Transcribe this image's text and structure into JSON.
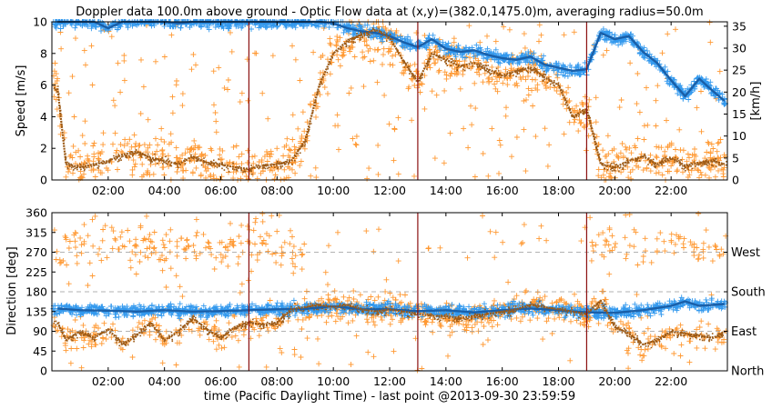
{
  "chart_data": [
    {
      "type": "scatter",
      "title": "Doppler data 100.0m above ground - Optic Flow data at (x,y)=(382.0,1475.0)m, averaging radius=50.0m",
      "xlabel": "",
      "ylabel": "Speed [m/s]",
      "ylabel_right": "[km/h]",
      "xlim": [
        0,
        24
      ],
      "ylim": [
        0,
        10
      ],
      "x_ticks": [
        2,
        4,
        6,
        8,
        10,
        12,
        14,
        16,
        18,
        20,
        22
      ],
      "x_tick_labels": [
        "02:00",
        "04:00",
        "06:00",
        "08:00",
        "10:00",
        "12:00",
        "14:00",
        "16:00",
        "18:00",
        "20:00",
        "22:00"
      ],
      "y_ticks": [
        0,
        2,
        4,
        6,
        8,
        10
      ],
      "y_tick_labels": [
        "0",
        "2",
        "4",
        "6",
        "8",
        "10"
      ],
      "y_right_ticks": [
        0,
        5,
        10,
        15,
        20,
        25,
        30,
        35
      ],
      "y_right_tick_labels": [
        "0",
        "5",
        "10",
        "15",
        "20",
        "25",
        "30",
        "35"
      ],
      "vertical_lines_x": [
        7.0,
        13.0,
        19.0
      ],
      "colors": {
        "blue_dark": "#1a5fa8",
        "blue_light": "#3399ee",
        "orange_dark": "#9c5a16",
        "orange_light": "#ff9933",
        "vline": "#8b1010"
      },
      "series": [
        {
          "style": "blue-line",
          "x": [
            0.2,
            0.5,
            1,
            1.5,
            2,
            2.5,
            3,
            3.5,
            4,
            4.5,
            5,
            5.5,
            6,
            6.5,
            7,
            7.5,
            8,
            8.5,
            9,
            9.5,
            10,
            10.5,
            11,
            11.5,
            12,
            12.5,
            13,
            13.5,
            14,
            14.5,
            15,
            15.5,
            16,
            16.5,
            17,
            17.5,
            18,
            18.5,
            19,
            19.5,
            20,
            20.5,
            21,
            21.5,
            22,
            22.5,
            23,
            23.5,
            23.9
          ],
          "y": [
            10,
            10,
            10,
            10,
            9.6,
            10,
            10,
            10,
            10,
            9.9,
            10,
            10,
            10,
            10,
            10,
            10,
            10,
            10,
            10,
            10,
            9.9,
            9.6,
            9.4,
            9.3,
            9.1,
            8.7,
            8.4,
            8.9,
            8.3,
            8.1,
            8.2,
            7.9,
            7.7,
            7.6,
            7.8,
            7.3,
            7.1,
            6.9,
            7.0,
            9.3,
            8.9,
            9.1,
            8.1,
            7.4,
            6.3,
            5.3,
            6.4,
            5.6,
            5.0
          ]
        },
        {
          "style": "orange-line",
          "x": [
            0.2,
            0.5,
            1,
            1.5,
            2,
            2.5,
            3,
            3.5,
            4,
            4.5,
            5,
            5.5,
            6,
            6.5,
            7,
            7.5,
            8,
            8.5,
            9,
            9.5,
            10,
            10.5,
            11,
            11.5,
            12,
            12.5,
            13,
            13.5,
            14,
            14.5,
            15,
            15.5,
            16,
            16.5,
            17,
            17.5,
            18,
            18.5,
            19,
            19.5,
            20,
            20.5,
            21,
            21.5,
            22,
            22.5,
            23,
            23.5,
            23.9
          ],
          "y": [
            5.8,
            1.0,
            0.8,
            1.0,
            1.2,
            1.6,
            1.8,
            1.4,
            1.2,
            1.0,
            1.5,
            1.1,
            1.0,
            0.8,
            0.7,
            0.9,
            1.0,
            1.2,
            2.5,
            6.0,
            8.0,
            8.8,
            9.2,
            9.5,
            9.0,
            7.5,
            6.2,
            8.0,
            7.6,
            7.2,
            7.4,
            7.0,
            6.6,
            6.9,
            7.1,
            6.5,
            6.0,
            4.0,
            4.5,
            1.0,
            0.8,
            1.2,
            1.5,
            1.0,
            1.4,
            0.9,
            1.1,
            1.2,
            1.0
          ]
        }
      ]
    },
    {
      "type": "scatter",
      "xlabel": "time (Pacific Daylight Time) - last point @2013-09-30 23:59:59",
      "ylabel": "Direction [deg]",
      "xlim": [
        0,
        24
      ],
      "ylim": [
        0,
        360
      ],
      "x_ticks": [
        2,
        4,
        6,
        8,
        10,
        12,
        14,
        16,
        18,
        20,
        22
      ],
      "x_tick_labels": [
        "02:00",
        "04:00",
        "06:00",
        "08:00",
        "10:00",
        "12:00",
        "14:00",
        "16:00",
        "18:00",
        "20:00",
        "22:00"
      ],
      "y_ticks": [
        0,
        45,
        90,
        135,
        180,
        225,
        270,
        315,
        360
      ],
      "y_tick_labels": [
        "0",
        "45",
        "90",
        "135",
        "180",
        "225",
        "270",
        "315",
        "360"
      ],
      "y_right_ticks": [
        0,
        90,
        180,
        270
      ],
      "y_right_tick_labels": [
        "North",
        "East",
        "South",
        "West"
      ],
      "reference_lines_y": [
        90,
        180,
        270
      ],
      "vertical_lines_x": [
        7.0,
        13.0,
        19.0
      ],
      "series": [
        {
          "style": "blue-line",
          "x": [
            0.2,
            1,
            2,
            3,
            4,
            5,
            6,
            7,
            8,
            9,
            10,
            11,
            12,
            13,
            14,
            15,
            16,
            17,
            18,
            19,
            20,
            21,
            22,
            22.5,
            23,
            23.9
          ],
          "y": [
            142,
            138,
            137,
            135,
            138,
            135,
            136,
            138,
            140,
            141,
            147,
            140,
            140,
            136,
            138,
            133,
            138,
            142,
            138,
            133,
            132,
            138,
            148,
            158,
            148,
            152
          ]
        },
        {
          "style": "orange-line",
          "x": [
            0.2,
            0.5,
            1,
            1.5,
            2,
            2.5,
            3,
            3.5,
            4,
            4.5,
            5,
            5.5,
            6,
            6.5,
            7,
            7.5,
            8,
            8.5,
            9,
            9.5,
            10,
            10.5,
            11,
            11.5,
            12,
            12.5,
            13,
            13.5,
            14,
            14.5,
            15,
            15.5,
            16,
            16.5,
            17,
            17.5,
            18,
            18.5,
            19,
            19.5,
            20,
            20.5,
            21,
            21.5,
            22,
            22.5,
            23,
            23.5,
            23.9
          ],
          "y": [
            110,
            70,
            90,
            75,
            95,
            60,
            80,
            110,
            70,
            90,
            120,
            95,
            75,
            100,
            110,
            105,
            110,
            140,
            145,
            150,
            145,
            150,
            140,
            135,
            140,
            135,
            130,
            125,
            125,
            120,
            125,
            130,
            135,
            140,
            150,
            145,
            140,
            135,
            130,
            160,
            100,
            85,
            60,
            70,
            90,
            85,
            80,
            75,
            90
          ]
        }
      ]
    }
  ]
}
